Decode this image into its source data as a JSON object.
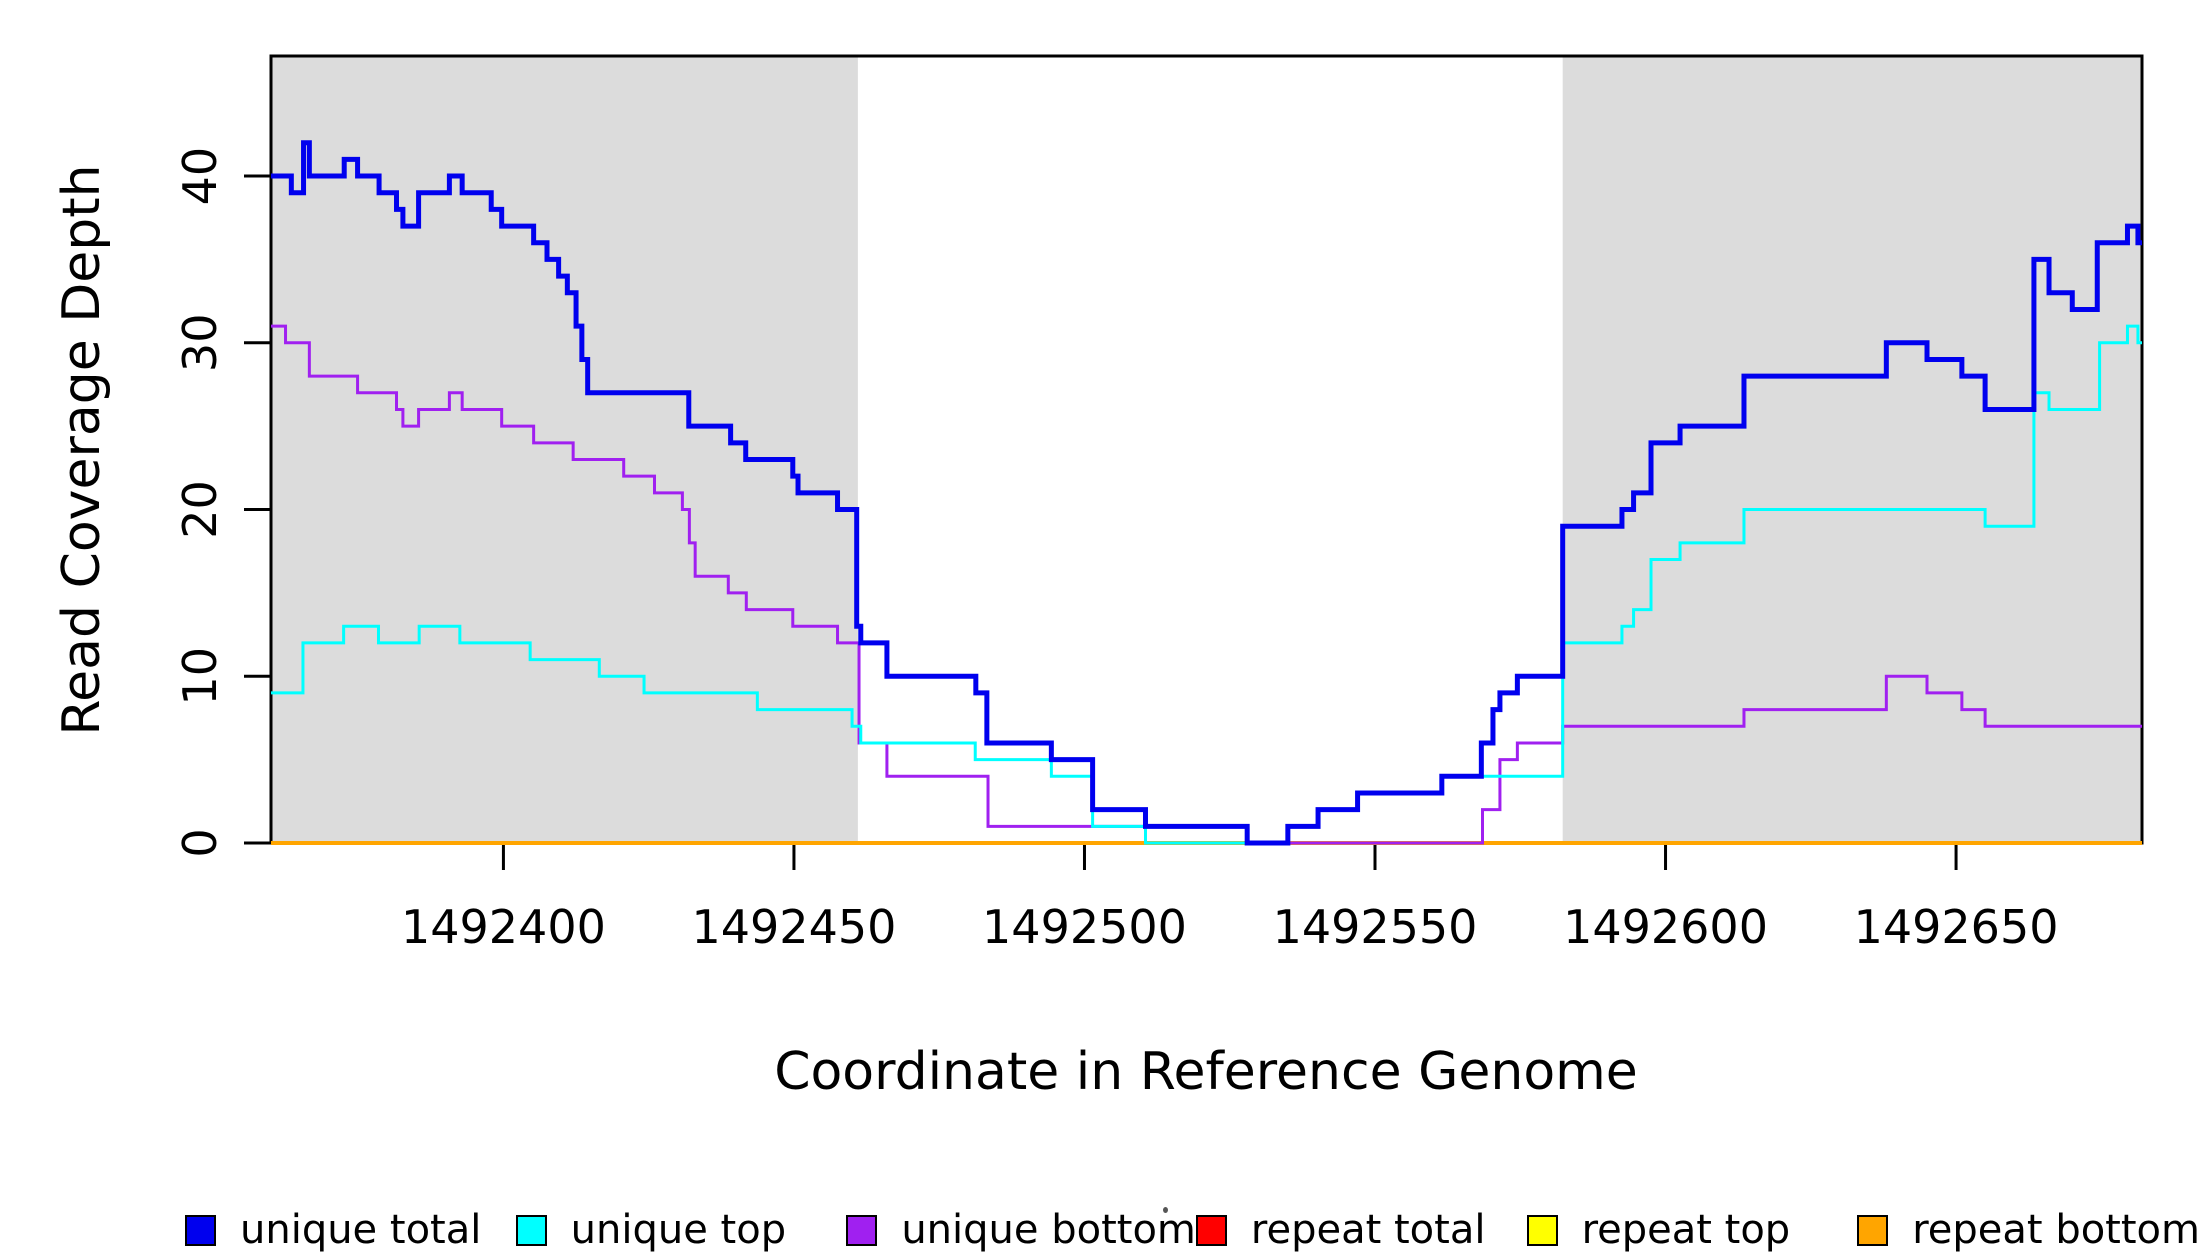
{
  "figure": {
    "x_axis_label": "Coordinate in Reference Genome",
    "y_axis_label": "Read Coverage Depth"
  },
  "chart_data": {
    "type": "line",
    "subtype": "step",
    "title": "",
    "xlabel": "Coordinate in Reference Genome",
    "ylabel": "Read Coverage Depth",
    "x_domain": [
      1492360,
      1492682
    ],
    "y_domain": [
      0,
      47.2
    ],
    "x_ticks": [
      1492400,
      1492450,
      1492500,
      1492550,
      1492600,
      1492650
    ],
    "y_ticks": [
      0,
      10,
      20,
      30,
      40
    ],
    "grid": false,
    "legend_position": "bottom",
    "background_color": "#ffffff",
    "shaded_regions": [
      {
        "x1": 1492360,
        "x2": 1492461,
        "color": "#DCDCDC"
      },
      {
        "x1": 1492582.3,
        "x2": 1492682,
        "color": "#DCDCDC"
      }
    ],
    "series": [
      {
        "name": "unique total",
        "color": "#0000EE",
        "line_width": 5,
        "steps": [
          [
            1492360,
            40
          ],
          [
            1492363.5,
            39
          ],
          [
            1492365.6,
            42
          ],
          [
            1492366.6,
            40
          ],
          [
            1492372.6,
            41
          ],
          [
            1492374.9,
            40
          ],
          [
            1492378.6,
            39
          ],
          [
            1492381.6,
            38
          ],
          [
            1492382.7,
            37
          ],
          [
            1492385.4,
            39
          ],
          [
            1492390.7,
            40
          ],
          [
            1492392.9,
            39
          ],
          [
            1492397.9,
            38
          ],
          [
            1492399.7,
            37
          ],
          [
            1492405.2,
            36
          ],
          [
            1492407.5,
            35
          ],
          [
            1492409.5,
            34
          ],
          [
            1492411,
            33
          ],
          [
            1492412.5,
            31
          ],
          [
            1492413.5,
            29
          ],
          [
            1492414.5,
            27
          ],
          [
            1492431.9,
            25
          ],
          [
            1492439.1,
            24
          ],
          [
            1492441.7,
            23
          ],
          [
            1492449.8,
            22
          ],
          [
            1492450.7,
            21
          ],
          [
            1492457.5,
            20
          ],
          [
            1492460.8,
            13
          ],
          [
            1492461.5,
            12
          ],
          [
            1492466,
            10
          ],
          [
            1492481.3,
            9
          ],
          [
            1492483.2,
            6
          ],
          [
            1492494.3,
            5
          ],
          [
            1492501.4,
            2
          ],
          [
            1492510.5,
            1
          ],
          [
            1492528,
            0
          ],
          [
            1492535,
            1
          ],
          [
            1492540.2,
            2
          ],
          [
            1492547,
            3
          ],
          [
            1492561.5,
            4
          ],
          [
            1492568.3,
            6
          ],
          [
            1492570.3,
            8
          ],
          [
            1492571.5,
            9
          ],
          [
            1492574.5,
            10
          ],
          [
            1492582.3,
            19
          ],
          [
            1492592.5,
            20
          ],
          [
            1492594.5,
            21
          ],
          [
            1492597.5,
            24
          ],
          [
            1492602.5,
            25
          ],
          [
            1492613.5,
            28
          ],
          [
            1492638,
            30
          ],
          [
            1492645,
            29
          ],
          [
            1492651,
            28
          ],
          [
            1492655,
            26
          ],
          [
            1492663.4,
            35
          ],
          [
            1492666,
            33
          ],
          [
            1492670,
            32
          ],
          [
            1492674.3,
            36
          ],
          [
            1492679.5,
            37
          ],
          [
            1492681.3,
            36
          ],
          [
            1492682,
            36
          ]
        ]
      },
      {
        "name": "unique top",
        "color": "#00FFFF",
        "line_width": 3,
        "steps": [
          [
            1492360,
            9
          ],
          [
            1492365.5,
            12
          ],
          [
            1492372.5,
            13
          ],
          [
            1492378.5,
            12
          ],
          [
            1492385.5,
            13
          ],
          [
            1492392.5,
            12
          ],
          [
            1492404.6,
            11
          ],
          [
            1492416.5,
            10
          ],
          [
            1492424.2,
            9
          ],
          [
            1492443.7,
            8
          ],
          [
            1492460,
            7
          ],
          [
            1492461.5,
            6
          ],
          [
            1492481.2,
            5
          ],
          [
            1492494.3,
            4
          ],
          [
            1492501.4,
            1
          ],
          [
            1492510.5,
            0
          ],
          [
            1492535,
            1
          ],
          [
            1492540.2,
            2
          ],
          [
            1492547,
            3
          ],
          [
            1492561.5,
            4
          ],
          [
            1492582.3,
            12
          ],
          [
            1492592.5,
            13
          ],
          [
            1492594.5,
            14
          ],
          [
            1492597.5,
            17
          ],
          [
            1492602.5,
            18
          ],
          [
            1492613.5,
            20
          ],
          [
            1492655,
            19
          ],
          [
            1492663.4,
            27
          ],
          [
            1492666,
            26
          ],
          [
            1492674.7,
            30
          ],
          [
            1492679.5,
            31
          ],
          [
            1492681.3,
            30
          ],
          [
            1492682,
            30
          ]
        ]
      },
      {
        "name": "unique bottom",
        "color": "#A020F0",
        "line_width": 3,
        "steps": [
          [
            1492360,
            31
          ],
          [
            1492362.5,
            30
          ],
          [
            1492366.6,
            28
          ],
          [
            1492374.9,
            27
          ],
          [
            1492381.6,
            26
          ],
          [
            1492382.7,
            25
          ],
          [
            1492385.4,
            26
          ],
          [
            1492390.7,
            27
          ],
          [
            1492392.9,
            26
          ],
          [
            1492399.7,
            25
          ],
          [
            1492405.2,
            24
          ],
          [
            1492412,
            23
          ],
          [
            1492420.7,
            22
          ],
          [
            1492426,
            21
          ],
          [
            1492430.8,
            20
          ],
          [
            1492432,
            18
          ],
          [
            1492433,
            16
          ],
          [
            1492438.7,
            15
          ],
          [
            1492441.8,
            14
          ],
          [
            1492449.8,
            13
          ],
          [
            1492457.5,
            12
          ],
          [
            1492461.2,
            6
          ],
          [
            1492466,
            4
          ],
          [
            1492483.4,
            1
          ],
          [
            1492528,
            0
          ],
          [
            1492568.5,
            2
          ],
          [
            1492571.5,
            5
          ],
          [
            1492574.5,
            6
          ],
          [
            1492582.3,
            7
          ],
          [
            1492613.5,
            8
          ],
          [
            1492638,
            10
          ],
          [
            1492645,
            9
          ],
          [
            1492651,
            8
          ],
          [
            1492655,
            7
          ],
          [
            1492682,
            7
          ]
        ]
      },
      {
        "name": "repeat total",
        "color": "#FF0000",
        "line_width": 3,
        "steps": [
          [
            1492360,
            0
          ],
          [
            1492682,
            0
          ]
        ]
      },
      {
        "name": "repeat top",
        "color": "#FFFF00",
        "line_width": 3,
        "steps": [
          [
            1492360,
            0
          ],
          [
            1492682,
            0
          ]
        ]
      },
      {
        "name": "repeat bottom",
        "color": "#FFA500",
        "line_width": 4,
        "steps": [
          [
            1492360,
            0
          ],
          [
            1492682,
            0
          ]
        ]
      }
    ]
  },
  "legend": {
    "items": [
      {
        "label": "unique total",
        "color": "#0000EE"
      },
      {
        "label": "unique top",
        "color": "#00FFFF"
      },
      {
        "label": "unique bottom",
        "color": "#A020F0"
      },
      {
        "label": "repeat total",
        "color": "#FF0000"
      },
      {
        "label": "repeat top",
        "color": "#FFFF00"
      },
      {
        "label": "repeat bottom",
        "color": "#FFA500"
      }
    ]
  }
}
